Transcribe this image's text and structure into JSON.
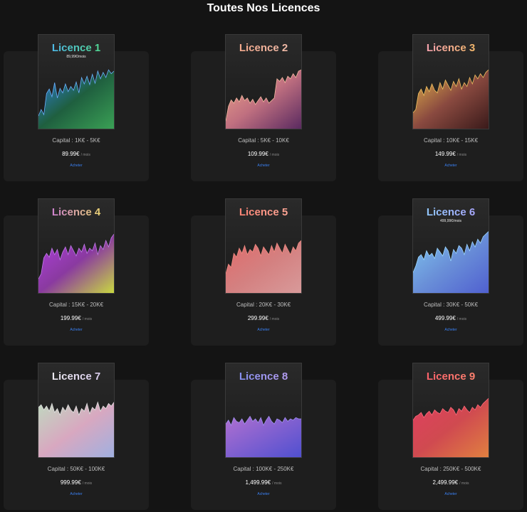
{
  "page": {
    "title": "Toutes Nos Licences"
  },
  "licenses": [
    {
      "name": "Licence 1",
      "subtitle": "89,99€/mois",
      "capital": "Capital : 1K€ - 5K€",
      "price": "89.99€",
      "per": "/ mois",
      "buy": "Acheter",
      "text_gradient": [
        "#4db0ff",
        "#52e07a"
      ],
      "fill_gradient": [
        "#2f80ed",
        "#1f5f3f",
        "#3aa055"
      ],
      "line": "#6ab2ff",
      "series": [
        0.2,
        0.3,
        0.22,
        0.55,
        0.62,
        0.5,
        0.72,
        0.48,
        0.63,
        0.56,
        0.7,
        0.58,
        0.66,
        0.6,
        0.73,
        0.56,
        0.8,
        0.7,
        0.82,
        0.69,
        0.85,
        0.71,
        0.9,
        0.78,
        0.88,
        0.8,
        0.92,
        0.86,
        0.9
      ]
    },
    {
      "name": "Licence 2",
      "subtitle": "",
      "capital": "Capital : 5K€ - 10K€",
      "price": "109.99€",
      "per": "/ mois",
      "buy": "Acheter",
      "text_gradient": [
        "#f5a585",
        "#f0c0b0"
      ],
      "fill_gradient": [
        "#f0a88a",
        "#c07080",
        "#5a2a60"
      ],
      "line": "#f4b8a0",
      "series": [
        0.12,
        0.35,
        0.45,
        0.4,
        0.48,
        0.42,
        0.52,
        0.44,
        0.48,
        0.4,
        0.46,
        0.38,
        0.44,
        0.5,
        0.42,
        0.48,
        0.4,
        0.44,
        0.48,
        0.78,
        0.74,
        0.8,
        0.72,
        0.82,
        0.78,
        0.86,
        0.8,
        0.9,
        0.92
      ]
    },
    {
      "name": "Licence 3",
      "subtitle": "",
      "capital": "Capital : 10K€ - 15K€",
      "price": "149.99€",
      "per": "/ mois",
      "buy": "Acheter",
      "text_gradient": [
        "#f79bc0",
        "#f5c05a"
      ],
      "fill_gradient": [
        "#e6b84a",
        "#8a4a40",
        "#3a1a1a"
      ],
      "line": "#f0c060",
      "series": [
        0.25,
        0.3,
        0.55,
        0.62,
        0.52,
        0.66,
        0.58,
        0.7,
        0.6,
        0.56,
        0.72,
        0.62,
        0.76,
        0.68,
        0.6,
        0.74,
        0.66,
        0.78,
        0.62,
        0.72,
        0.66,
        0.8,
        0.7,
        0.84,
        0.78,
        0.86,
        0.8,
        0.88,
        0.92
      ]
    },
    {
      "name": "Licence 4",
      "subtitle": "",
      "capital": "Capital : 15K€ - 20K€",
      "price": "199.99€",
      "per": "/ mois",
      "buy": "Acheter",
      "text_gradient": [
        "#c66be8",
        "#f2e85a"
      ],
      "fill_gradient": [
        "#b040e0",
        "#8a3aa0",
        "#c8d840"
      ],
      "line": "#c07ae8",
      "series": [
        0.22,
        0.3,
        0.55,
        0.62,
        0.56,
        0.7,
        0.6,
        0.68,
        0.52,
        0.64,
        0.72,
        0.6,
        0.74,
        0.66,
        0.58,
        0.7,
        0.64,
        0.76,
        0.62,
        0.7,
        0.66,
        0.78,
        0.6,
        0.74,
        0.68,
        0.82,
        0.72,
        0.86,
        0.92
      ]
    },
    {
      "name": "Licence 5",
      "subtitle": "",
      "capital": "Capital : 20K€ - 30K€",
      "price": "299.99€",
      "per": "/ mois",
      "buy": "Acheter",
      "text_gradient": [
        "#ff7a6a",
        "#ffb0a0"
      ],
      "fill_gradient": [
        "#e06a6a",
        "#d48080",
        "#d89a9a"
      ],
      "line": "#f08a80",
      "series": [
        0.3,
        0.45,
        0.4,
        0.62,
        0.56,
        0.7,
        0.62,
        0.74,
        0.6,
        0.68,
        0.64,
        0.76,
        0.7,
        0.58,
        0.72,
        0.66,
        0.6,
        0.74,
        0.64,
        0.78,
        0.7,
        0.62,
        0.76,
        0.68,
        0.6,
        0.72,
        0.66,
        0.78,
        0.82
      ]
    },
    {
      "name": "Licence 6",
      "subtitle": "499,99€/mois",
      "capital": "Capital : 30K€ - 50K€",
      "price": "499.99€",
      "per": "/ mois",
      "buy": "Acheter",
      "text_gradient": [
        "#8ad0ff",
        "#b0a0ff"
      ],
      "fill_gradient": [
        "#80c8f0",
        "#6a90d8",
        "#5060d0"
      ],
      "line": "#9ad6ff",
      "series": [
        0.32,
        0.42,
        0.56,
        0.6,
        0.52,
        0.66,
        0.58,
        0.62,
        0.54,
        0.7,
        0.64,
        0.58,
        0.72,
        0.66,
        0.5,
        0.68,
        0.62,
        0.74,
        0.7,
        0.6,
        0.76,
        0.66,
        0.8,
        0.72,
        0.84,
        0.78,
        0.88,
        0.92,
        0.96
      ]
    },
    {
      "name": "Licence 7",
      "subtitle": "",
      "capital": "Capital : 50K€ - 100K€",
      "price": "999.99€",
      "per": "/ mois",
      "buy": "Acheter",
      "text_gradient": [
        "#f0f0f0",
        "#d8c8f0"
      ],
      "fill_gradient": [
        "#c0d8c0",
        "#d8a8c0",
        "#a0b0e0"
      ],
      "line": "#e0e0e0",
      "series": [
        0.78,
        0.82,
        0.74,
        0.8,
        0.72,
        0.84,
        0.7,
        0.76,
        0.66,
        0.78,
        0.72,
        0.82,
        0.74,
        0.7,
        0.8,
        0.66,
        0.76,
        0.72,
        0.84,
        0.68,
        0.78,
        0.74,
        0.86,
        0.72,
        0.8,
        0.76,
        0.84,
        0.8,
        0.86
      ]
    },
    {
      "name": "Licence 8",
      "subtitle": "",
      "capital": "Capital : 100K€ - 250K€",
      "price": "1,499.99€",
      "per": "/ mois",
      "buy": "Acheter",
      "text_gradient": [
        "#7a8cf0",
        "#c0a0f0"
      ],
      "fill_gradient": [
        "#b070d0",
        "#8060d0",
        "#5050d0"
      ],
      "line": "#a090f0",
      "series": [
        0.52,
        0.58,
        0.5,
        0.62,
        0.56,
        0.54,
        0.6,
        0.52,
        0.58,
        0.64,
        0.56,
        0.6,
        0.54,
        0.62,
        0.5,
        0.58,
        0.64,
        0.56,
        0.52,
        0.6,
        0.58,
        0.54,
        0.62,
        0.56,
        0.6,
        0.58,
        0.62,
        0.6,
        0.6
      ]
    },
    {
      "name": "Licence 9",
      "subtitle": "",
      "capital": "Capital : 250K€ - 500K€",
      "price": "2,499.99€",
      "per": "/ mois",
      "buy": "Acheter",
      "text_gradient": [
        "#ff5a6a",
        "#ff8a70"
      ],
      "fill_gradient": [
        "#e04060",
        "#d04a50",
        "#e08040"
      ],
      "line": "#ff6a7a",
      "series": [
        0.58,
        0.64,
        0.66,
        0.7,
        0.62,
        0.68,
        0.72,
        0.66,
        0.74,
        0.7,
        0.68,
        0.76,
        0.72,
        0.7,
        0.78,
        0.74,
        0.66,
        0.76,
        0.72,
        0.8,
        0.74,
        0.7,
        0.78,
        0.74,
        0.82,
        0.78,
        0.84,
        0.88,
        0.92
      ]
    }
  ]
}
